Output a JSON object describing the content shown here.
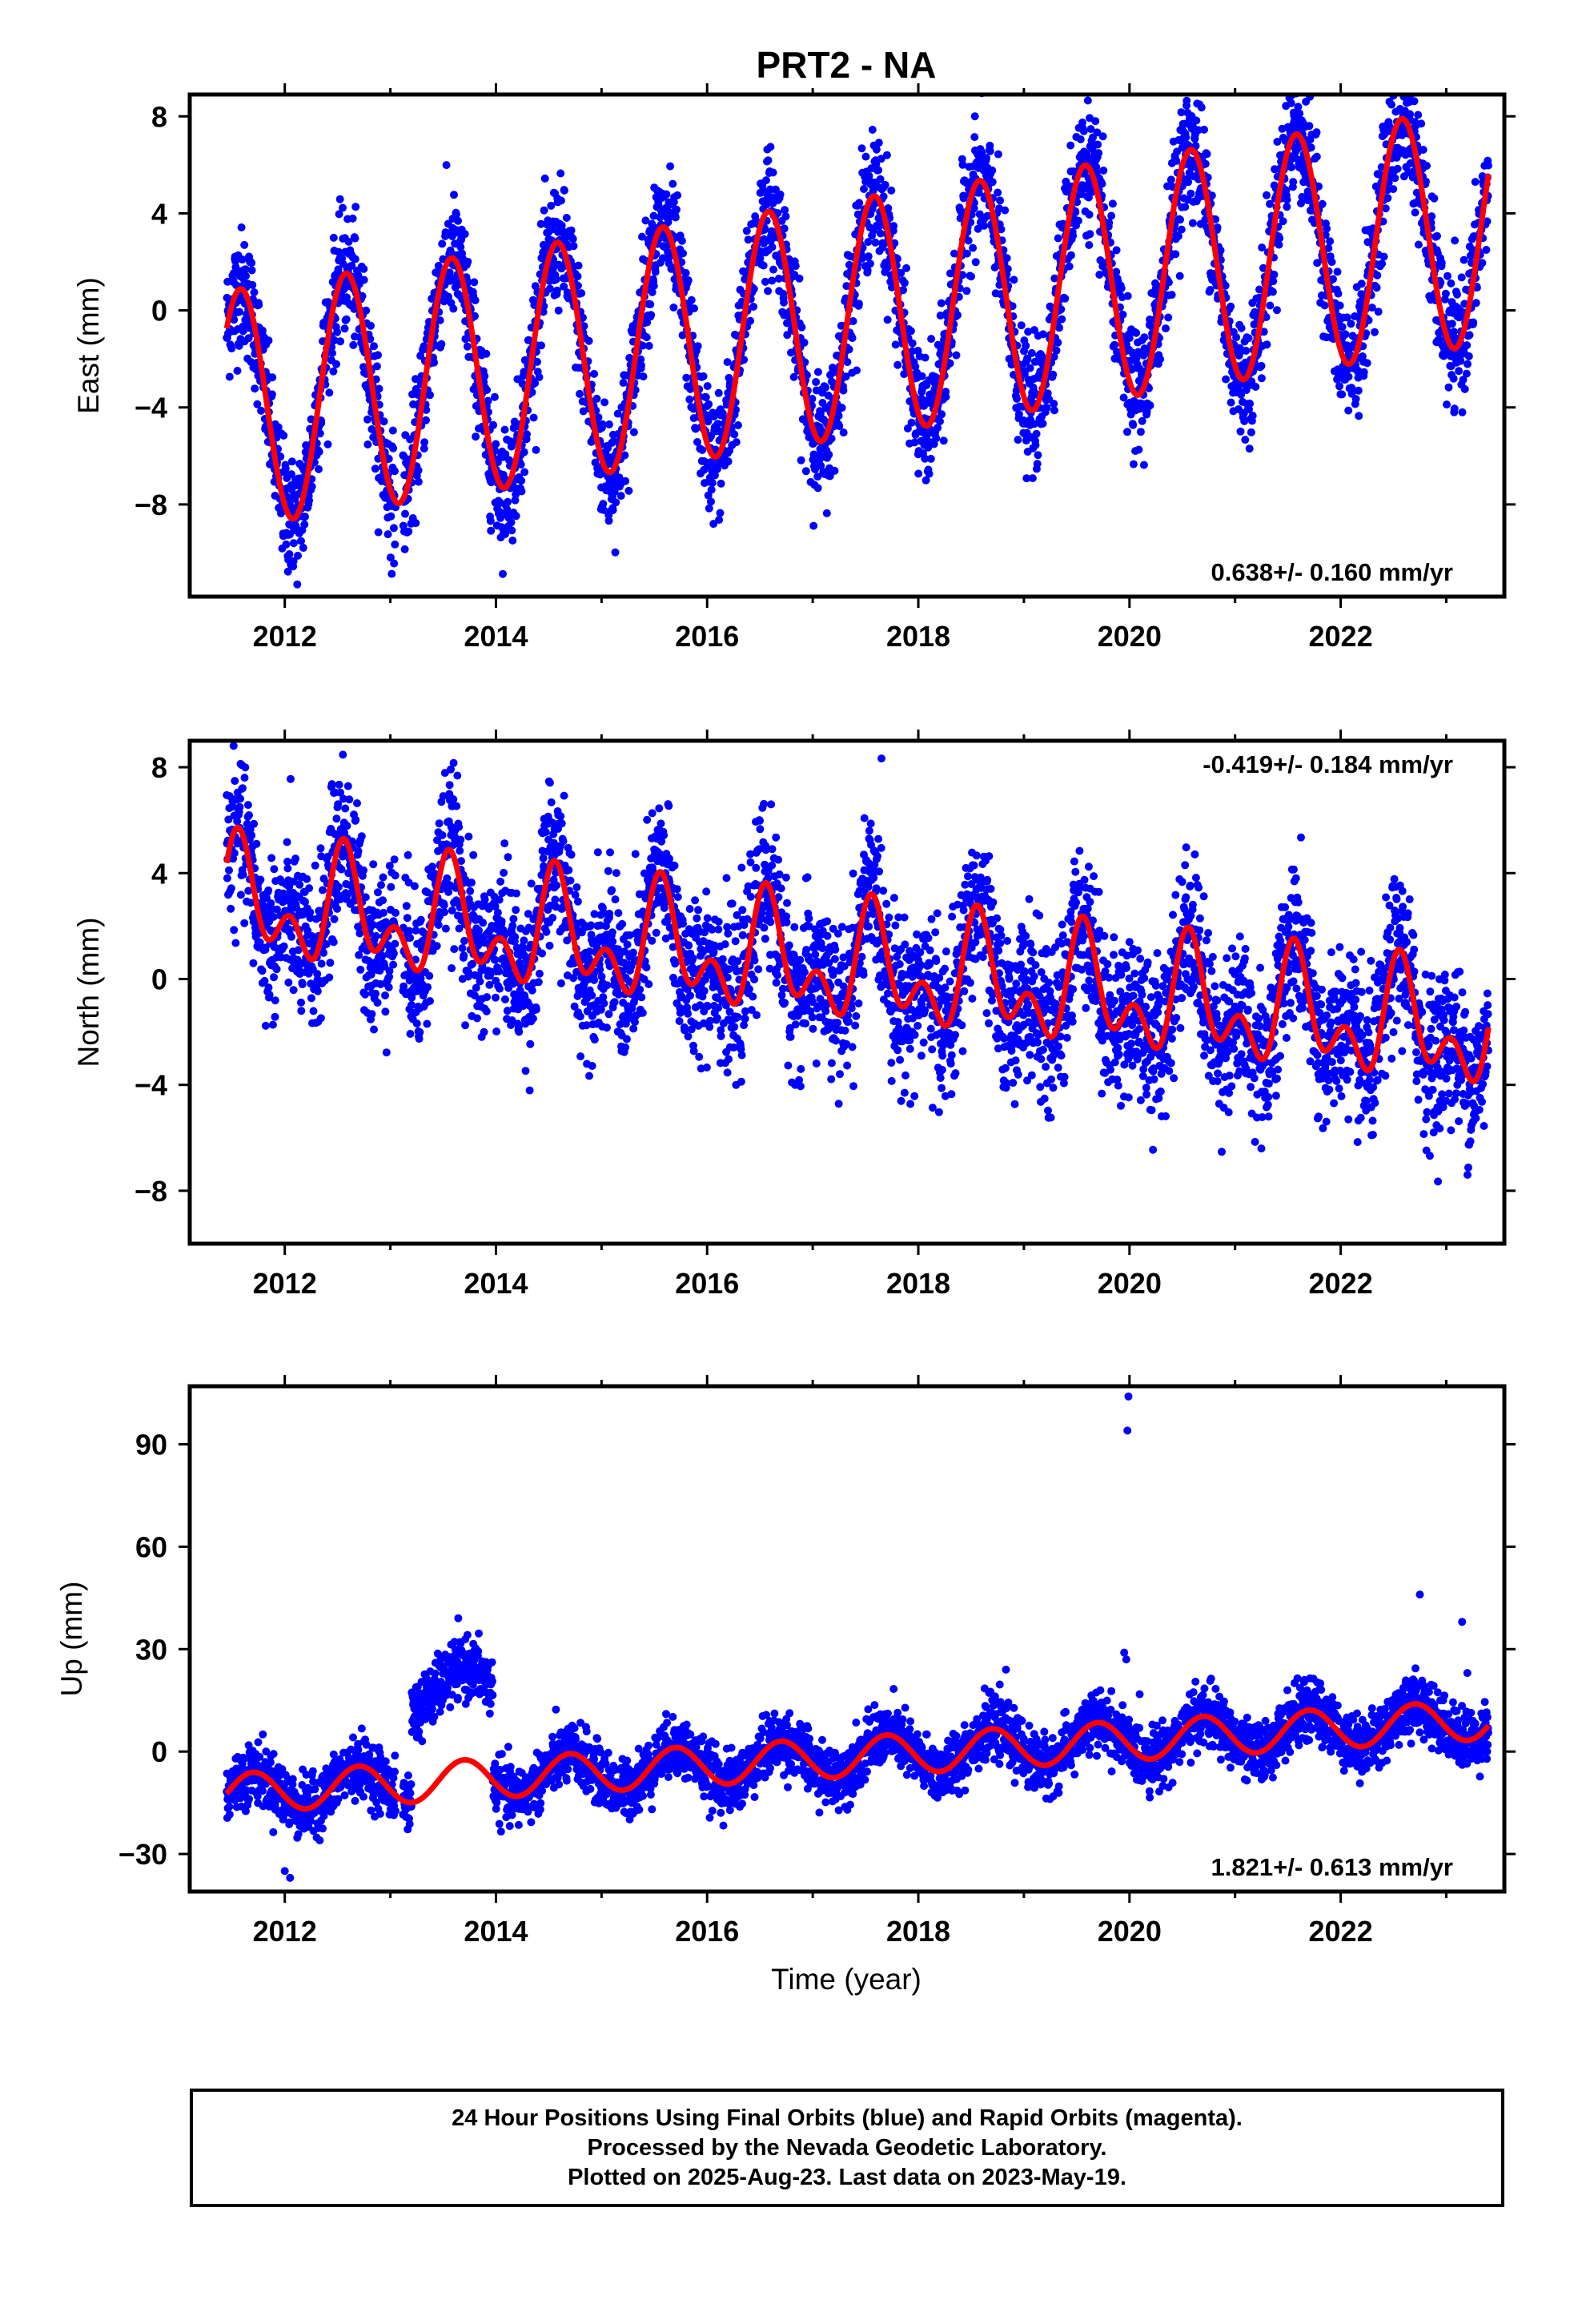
{
  "title": "PRT2 - NA",
  "xlabel": "Time (year)",
  "footer": {
    "line1": "24 Hour Positions Using Final Orbits (blue) and Rapid Orbits (magenta).",
    "line2": "Processed by the Nevada Geodetic Laboratory.",
    "line3": "Plotted on 2025-Aug-23. Last data on 2023-May-19."
  },
  "colors": {
    "data": "#0000ff",
    "fit": "#ff0000",
    "axis": "#000000"
  },
  "chart_data": [
    {
      "type": "scatter",
      "component": "east",
      "ylabel": "East (mm)",
      "rate_label": "0.638+/- 0.160 mm/yr",
      "rate_placement": "bottom-right",
      "xlim": [
        2011.1,
        2023.55
      ],
      "ylim": [
        -11.8,
        8.9
      ],
      "x_ticks": [
        2012,
        2014,
        2016,
        2018,
        2020,
        2022
      ],
      "y_ticks": [
        8,
        4,
        0,
        -4,
        -8
      ],
      "fit_model": {
        "t_start": 2011.45,
        "t_end": 2023.4,
        "t0": 2017.4,
        "offset": -0.3,
        "rate": 0.638,
        "annual_amp": 4.9,
        "annual_peak": 2011.58,
        "semiannual_amp": 0.0,
        "semiannual_peak": 2011.3,
        "steps": []
      },
      "scatter_model": {
        "noise": 1.25,
        "density": 5
      }
    },
    {
      "type": "scatter",
      "component": "north",
      "ylabel": "North (mm)",
      "rate_label": "-0.419+/- 0.184 mm/yr",
      "rate_placement": "top-right",
      "xlim": [
        2011.1,
        2023.55
      ],
      "ylim": [
        -10.0,
        9.0
      ],
      "x_ticks": [
        2012,
        2014,
        2016,
        2018,
        2020,
        2022
      ],
      "y_ticks": [
        8,
        4,
        0,
        -4,
        -8
      ],
      "fit_model": {
        "t_start": 2011.45,
        "t_end": 2023.4,
        "t0": 2017.4,
        "offset": 0.4,
        "rate": -0.419,
        "annual_amp": 1.6,
        "annual_peak": 2011.58,
        "semiannual_amp": 1.3,
        "semiannual_peak": 2011.55,
        "steps": []
      },
      "scatter_model": {
        "noise": 1.45,
        "density": 5
      }
    },
    {
      "type": "scatter",
      "component": "up",
      "ylabel": "Up (mm)",
      "rate_label": "1.821+/- 0.613 mm/yr",
      "rate_placement": "bottom-right",
      "xlim": [
        2011.1,
        2023.55
      ],
      "ylim": [
        -41,
        107
      ],
      "x_ticks": [
        2012,
        2014,
        2016,
        2018,
        2020,
        2022
      ],
      "y_ticks": [
        90,
        60,
        30,
        0,
        -30
      ],
      "fit_model": {
        "t_start": 2011.45,
        "t_end": 2023.4,
        "t0": 2017.4,
        "offset": -1.5,
        "rate": 1.821,
        "annual_amp": 5.8,
        "annual_peak": 2011.7,
        "semiannual_amp": 0.0,
        "semiannual_peak": 2011.3,
        "steps": []
      },
      "scatter_model": {
        "noise": 4.2,
        "density": 5
      },
      "data_offsets": [
        {
          "from": 2013.2,
          "to": 2013.97,
          "shift": 27
        }
      ],
      "outliers": [
        {
          "x": 2019.99,
          "y": 104
        },
        {
          "x": 2019.98,
          "y": 94
        },
        {
          "x": 2019.95,
          "y": 29
        },
        {
          "x": 2019.97,
          "y": 27
        },
        {
          "x": 2022.75,
          "y": 46
        },
        {
          "x": 2023.15,
          "y": 38
        },
        {
          "x": 2023.2,
          "y": 23
        },
        {
          "x": 2018.83,
          "y": 24
        },
        {
          "x": 2012.0,
          "y": -35
        },
        {
          "x": 2012.05,
          "y": -37
        }
      ]
    }
  ]
}
